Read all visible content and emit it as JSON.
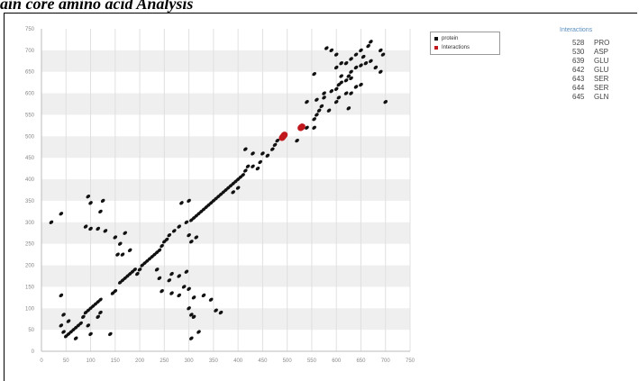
{
  "caption": "ain core amino acid Analysis",
  "legend": [
    {
      "label": "protein",
      "color": "#111111"
    },
    {
      "label": "Interactions",
      "color": "#c0181c"
    }
  ],
  "interactions": {
    "title": "Interactions",
    "rows": [
      {
        "num": "528",
        "res": "PRO"
      },
      {
        "num": "530",
        "res": "ASP"
      },
      {
        "num": "639",
        "res": "GLU"
      },
      {
        "num": "642",
        "res": "GLU"
      },
      {
        "num": "643",
        "res": "SER"
      },
      {
        "num": "644",
        "res": "SER"
      },
      {
        "num": "645",
        "res": "GLN"
      }
    ]
  },
  "chart_data": {
    "type": "scatter",
    "xlim": [
      0,
      750
    ],
    "ylim": [
      0,
      750
    ],
    "xticks": [
      "0",
      "50",
      "100",
      "150",
      "200",
      "250",
      "300",
      "350",
      "400",
      "450",
      "500",
      "550",
      "600",
      "650",
      "700",
      "750"
    ],
    "yticks": [
      "0",
      "50",
      "100",
      "150",
      "200",
      "250",
      "300",
      "350",
      "400",
      "450",
      "500",
      "550",
      "600",
      "650",
      "700",
      "750"
    ],
    "grid": "alternating horizontal bands",
    "legend_position": "top-right",
    "series": [
      {
        "name": "protein",
        "color": "#111111",
        "points": [
          [
            20,
            300
          ],
          [
            40,
            320
          ],
          [
            45,
            85
          ],
          [
            55,
            70
          ],
          [
            40,
            60
          ],
          [
            45,
            45
          ],
          [
            55,
            40
          ],
          [
            60,
            45
          ],
          [
            65,
            50
          ],
          [
            70,
            55
          ],
          [
            75,
            60
          ],
          [
            80,
            65
          ],
          [
            50,
            35
          ],
          [
            70,
            30
          ],
          [
            40,
            130
          ],
          [
            85,
            80
          ],
          [
            90,
            90
          ],
          [
            95,
            95
          ],
          [
            100,
            100
          ],
          [
            105,
            105
          ],
          [
            110,
            110
          ],
          [
            115,
            115
          ],
          [
            120,
            120
          ],
          [
            95,
            60
          ],
          [
            100,
            40
          ],
          [
            115,
            80
          ],
          [
            120,
            90
          ],
          [
            140,
            40
          ],
          [
            95,
            360
          ],
          [
            100,
            345
          ],
          [
            125,
            350
          ],
          [
            120,
            325
          ],
          [
            90,
            290
          ],
          [
            100,
            285
          ],
          [
            115,
            285
          ],
          [
            130,
            280
          ],
          [
            150,
            265
          ],
          [
            160,
            250
          ],
          [
            170,
            275
          ],
          [
            155,
            225
          ],
          [
            165,
            225
          ],
          [
            180,
            235
          ],
          [
            195,
            180
          ],
          [
            200,
            190
          ],
          [
            205,
            200
          ],
          [
            210,
            205
          ],
          [
            215,
            210
          ],
          [
            220,
            215
          ],
          [
            225,
            220
          ],
          [
            230,
            225
          ],
          [
            235,
            230
          ],
          [
            240,
            235
          ],
          [
            245,
            245
          ],
          [
            250,
            255
          ],
          [
            160,
            160
          ],
          [
            165,
            165
          ],
          [
            170,
            170
          ],
          [
            175,
            175
          ],
          [
            180,
            180
          ],
          [
            185,
            185
          ],
          [
            190,
            190
          ],
          [
            150,
            140
          ],
          [
            145,
            135
          ],
          [
            255,
            260
          ],
          [
            260,
            270
          ],
          [
            270,
            280
          ],
          [
            280,
            290
          ],
          [
            285,
            345
          ],
          [
            300,
            350
          ],
          [
            295,
            300
          ],
          [
            305,
            305
          ],
          [
            310,
            310
          ],
          [
            315,
            315
          ],
          [
            320,
            320
          ],
          [
            325,
            325
          ],
          [
            330,
            330
          ],
          [
            335,
            335
          ],
          [
            340,
            340
          ],
          [
            345,
            345
          ],
          [
            300,
            270
          ],
          [
            305,
            255
          ],
          [
            315,
            265
          ],
          [
            235,
            190
          ],
          [
            240,
            170
          ],
          [
            260,
            165
          ],
          [
            265,
            180
          ],
          [
            245,
            140
          ],
          [
            265,
            135
          ],
          [
            280,
            130
          ],
          [
            290,
            150
          ],
          [
            300,
            145
          ],
          [
            310,
            125
          ],
          [
            280,
            175
          ],
          [
            295,
            185
          ],
          [
            300,
            100
          ],
          [
            305,
            85
          ],
          [
            310,
            80
          ],
          [
            305,
            30
          ],
          [
            320,
            45
          ],
          [
            330,
            130
          ],
          [
            345,
            120
          ],
          [
            355,
            95
          ],
          [
            365,
            90
          ],
          [
            350,
            350
          ],
          [
            355,
            355
          ],
          [
            360,
            360
          ],
          [
            365,
            365
          ],
          [
            370,
            370
          ],
          [
            375,
            375
          ],
          [
            380,
            380
          ],
          [
            385,
            385
          ],
          [
            390,
            390
          ],
          [
            395,
            395
          ],
          [
            400,
            400
          ],
          [
            405,
            405
          ],
          [
            410,
            410
          ],
          [
            400,
            380
          ],
          [
            390,
            370
          ],
          [
            415,
            420
          ],
          [
            420,
            430
          ],
          [
            430,
            430
          ],
          [
            440,
            425
          ],
          [
            445,
            440
          ],
          [
            460,
            455
          ],
          [
            450,
            460
          ],
          [
            470,
            470
          ],
          [
            475,
            480
          ],
          [
            480,
            490
          ],
          [
            430,
            460
          ],
          [
            415,
            470
          ],
          [
            520,
            490
          ],
          [
            540,
            520
          ],
          [
            555,
            540
          ],
          [
            560,
            550
          ],
          [
            565,
            560
          ],
          [
            570,
            570
          ],
          [
            560,
            585
          ],
          [
            575,
            590
          ],
          [
            585,
            560
          ],
          [
            540,
            580
          ],
          [
            555,
            520
          ],
          [
            555,
            645
          ],
          [
            575,
            600
          ],
          [
            590,
            605
          ],
          [
            600,
            610
          ],
          [
            605,
            620
          ],
          [
            610,
            625
          ],
          [
            620,
            630
          ],
          [
            625,
            640
          ],
          [
            630,
            650
          ],
          [
            640,
            660
          ],
          [
            650,
            665
          ],
          [
            660,
            670
          ],
          [
            670,
            675
          ],
          [
            680,
            660
          ],
          [
            690,
            650
          ],
          [
            695,
            690
          ],
          [
            690,
            700
          ],
          [
            670,
            720
          ],
          [
            665,
            710
          ],
          [
            655,
            685
          ],
          [
            650,
            700
          ],
          [
            640,
            690
          ],
          [
            630,
            680
          ],
          [
            620,
            670
          ],
          [
            610,
            670
          ],
          [
            600,
            660
          ],
          [
            580,
            705
          ],
          [
            590,
            700
          ],
          [
            600,
            690
          ],
          [
            610,
            640
          ],
          [
            620,
            600
          ],
          [
            630,
            600
          ],
          [
            640,
            615
          ],
          [
            650,
            620
          ],
          [
            630,
            635
          ],
          [
            700,
            580
          ],
          [
            625,
            565
          ],
          [
            600,
            580
          ],
          [
            605,
            590
          ]
        ]
      },
      {
        "name": "Interactions",
        "color": "#c0181c",
        "points": [
          [
            528,
            520
          ],
          [
            530,
            522
          ],
          [
            490,
            497
          ],
          [
            492,
            500
          ],
          [
            494,
            503
          ]
        ]
      }
    ]
  }
}
